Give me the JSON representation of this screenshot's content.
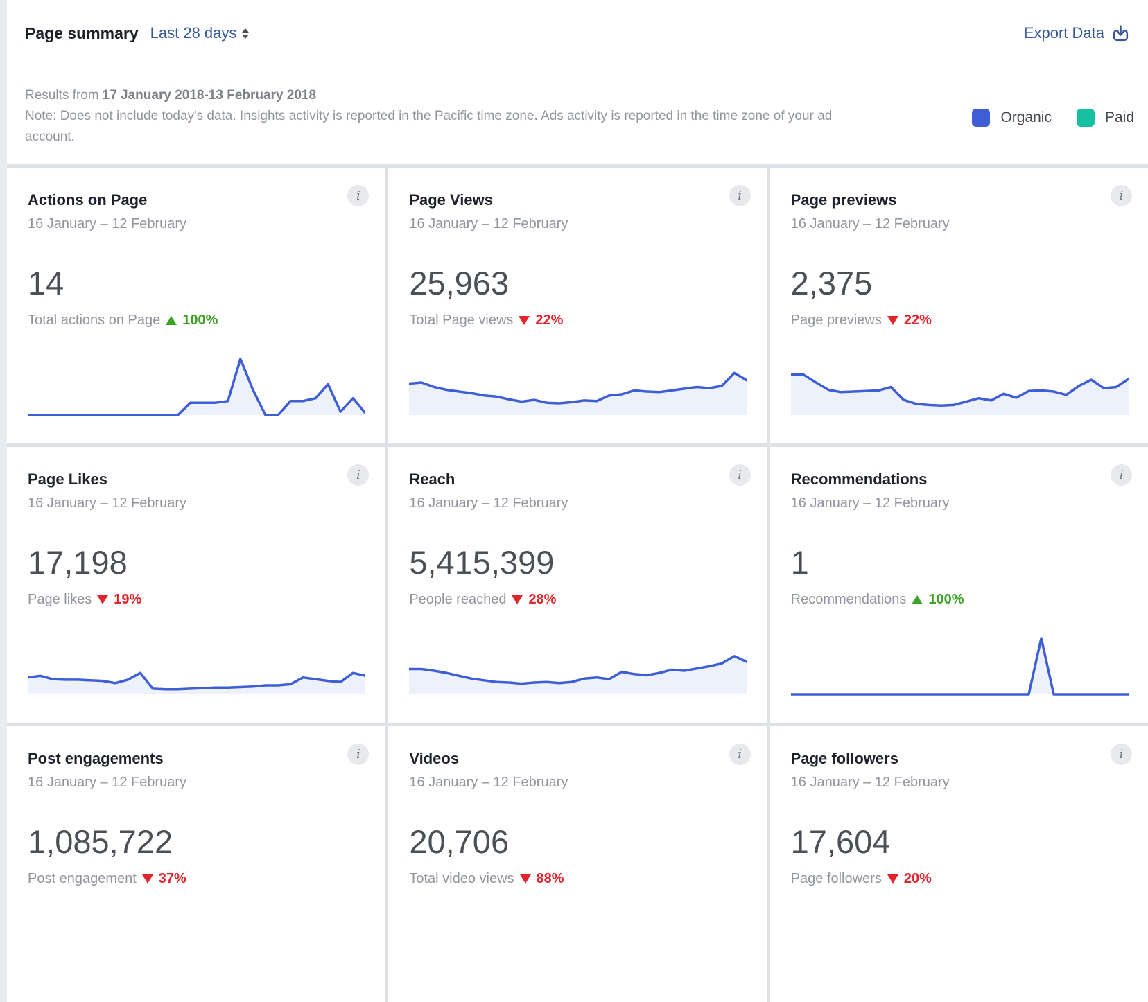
{
  "header": {
    "title": "Page summary",
    "range_label": "Last 28 days",
    "export_label": "Export Data"
  },
  "meta": {
    "results_prefix": "Results from",
    "results_range": "17 January 2018-13 February 2018",
    "note_line": "Note: Does not include today's data. Insights activity is reported in the Pacific time zone. Ads activity is reported in the time zone of your ad account.",
    "legend": [
      {
        "label": "Organic",
        "color": "#3e5ed6"
      },
      {
        "label": "Paid",
        "color": "#16bfa2"
      }
    ]
  },
  "colors": {
    "positive": "#3da226",
    "negative": "#e1252b",
    "spark_line": "#3e5ed6",
    "spark_fill": "#edf1fb",
    "link": "#365899"
  },
  "cards": [
    {
      "title": "Actions on Page",
      "date_range": "16 January – 12 February",
      "value": "14",
      "metric_label": "Total actions on Page",
      "delta": {
        "direction": "up",
        "percent": "100%"
      },
      "spark": [
        0,
        0,
        0,
        0,
        0,
        0,
        0,
        0,
        0,
        0,
        0,
        0,
        0,
        0.22,
        0.22,
        0.22,
        0.25,
        1.0,
        0.45,
        0,
        0,
        0.25,
        0.25,
        0.3,
        0.55,
        0.06,
        0.3,
        0.03
      ]
    },
    {
      "title": "Page Views",
      "date_range": "16 January – 12 February",
      "value": "25,963",
      "metric_label": "Total Page views",
      "delta": {
        "direction": "down",
        "percent": "22%"
      },
      "spark": [
        0.56,
        0.58,
        0.5,
        0.45,
        0.42,
        0.39,
        0.35,
        0.33,
        0.28,
        0.24,
        0.27,
        0.22,
        0.21,
        0.23,
        0.26,
        0.25,
        0.35,
        0.37,
        0.44,
        0.42,
        0.41,
        0.44,
        0.47,
        0.5,
        0.48,
        0.52,
        0.75,
        0.62
      ]
    },
    {
      "title": "Page previews",
      "date_range": "16 January – 12 February",
      "value": "2,375",
      "metric_label": "Page previews",
      "delta": {
        "direction": "down",
        "percent": "22%"
      },
      "spark": [
        0.72,
        0.72,
        0.58,
        0.45,
        0.41,
        0.42,
        0.43,
        0.44,
        0.5,
        0.27,
        0.2,
        0.18,
        0.17,
        0.18,
        0.24,
        0.3,
        0.26,
        0.38,
        0.31,
        0.43,
        0.44,
        0.42,
        0.36,
        0.52,
        0.63,
        0.48,
        0.5,
        0.65
      ]
    },
    {
      "title": "Page Likes",
      "date_range": "16 January – 12 February",
      "value": "17,198",
      "metric_label": "Page likes",
      "delta": {
        "direction": "down",
        "percent": "19%"
      },
      "spark": [
        0.3,
        0.33,
        0.27,
        0.26,
        0.26,
        0.25,
        0.24,
        0.2,
        0.26,
        0.38,
        0.1,
        0.09,
        0.09,
        0.1,
        0.11,
        0.12,
        0.12,
        0.13,
        0.14,
        0.16,
        0.16,
        0.18,
        0.3,
        0.27,
        0.24,
        0.22,
        0.38,
        0.33
      ]
    },
    {
      "title": "Reach",
      "date_range": "16 January – 12 February",
      "value": "5,415,399",
      "metric_label": "People reached",
      "delta": {
        "direction": "down",
        "percent": "28%"
      },
      "spark": [
        0.45,
        0.45,
        0.42,
        0.38,
        0.33,
        0.28,
        0.25,
        0.22,
        0.21,
        0.19,
        0.21,
        0.22,
        0.2,
        0.22,
        0.28,
        0.3,
        0.27,
        0.4,
        0.36,
        0.34,
        0.38,
        0.44,
        0.42,
        0.46,
        0.5,
        0.55,
        0.68,
        0.58
      ]
    },
    {
      "title": "Recommendations",
      "date_range": "16 January – 12 February",
      "value": "1",
      "metric_label": "Recommendations",
      "delta": {
        "direction": "up",
        "percent": "100%"
      },
      "spark": [
        0,
        0,
        0,
        0,
        0,
        0,
        0,
        0,
        0,
        0,
        0,
        0,
        0,
        0,
        0,
        0,
        0,
        0,
        0,
        0,
        1,
        0,
        0,
        0,
        0,
        0,
        0,
        0
      ]
    },
    {
      "title": "Post engagements",
      "date_range": "16 January – 12 February",
      "value": "1,085,722",
      "metric_label": "Post engagement",
      "delta": {
        "direction": "down",
        "percent": "37%"
      }
    },
    {
      "title": "Videos",
      "date_range": "16 January – 12 February",
      "value": "20,706",
      "metric_label": "Total video views",
      "delta": {
        "direction": "down",
        "percent": "88%"
      }
    },
    {
      "title": "Page followers",
      "date_range": "16 January – 12 February",
      "value": "17,604",
      "metric_label": "Page followers",
      "delta": {
        "direction": "down",
        "percent": "20%"
      }
    }
  ]
}
